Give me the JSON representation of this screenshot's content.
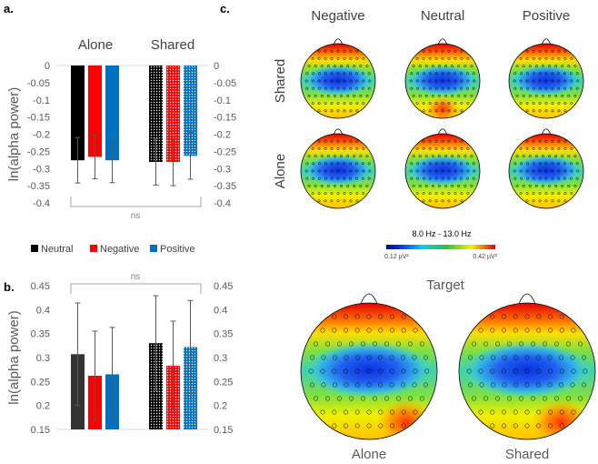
{
  "panel_labels": {
    "a": "a.",
    "b": "b.",
    "c": "c."
  },
  "legend": [
    {
      "label": "Neutral",
      "color": "#000000"
    },
    {
      "label": "Negative",
      "color": "#ff0000"
    },
    {
      "label": "Positive",
      "color": "#0070c0"
    }
  ],
  "chart_data": [
    {
      "type": "bar",
      "panel": "a",
      "title_groups": [
        "Alone",
        "Shared"
      ],
      "categories": [
        "Alone",
        "Shared"
      ],
      "ylabel": "ln(alpha power)",
      "ylim": [
        -0.4,
        0
      ],
      "yticks": [
        "0",
        "-0.05",
        "-0.1",
        "-0.15",
        "-0.2",
        "-0.25",
        "-0.3",
        "-0.35",
        "-0.4"
      ],
      "ytick_values": [
        0,
        -0.05,
        -0.1,
        -0.15,
        -0.2,
        -0.25,
        -0.3,
        -0.35,
        -0.4
      ],
      "series": [
        {
          "name": "Neutral",
          "values": [
            -0.276,
            -0.281
          ],
          "errors": [
            0.066,
            0.067
          ]
        },
        {
          "name": "Negative",
          "values": [
            -0.266,
            -0.281
          ],
          "errors": [
            0.064,
            0.069
          ]
        },
        {
          "name": "Positive",
          "values": [
            -0.276,
            -0.263
          ],
          "errors": [
            0.065,
            0.068
          ]
        }
      ],
      "annotation": "ns"
    },
    {
      "type": "bar",
      "panel": "b",
      "categories": [
        "Alone",
        "Shared"
      ],
      "ylabel": "ln(alpha power)",
      "ylim": [
        0.15,
        0.45
      ],
      "yticks": [
        "0.45",
        "0.4",
        "0.35",
        "0.3",
        "0.25",
        "0.2",
        "0.15"
      ],
      "ytick_values": [
        0.45,
        0.4,
        0.35,
        0.3,
        0.25,
        0.2,
        0.15
      ],
      "series": [
        {
          "name": "Neutral",
          "values": [
            0.307,
            0.33
          ],
          "errors": [
            0.107,
            0.099
          ]
        },
        {
          "name": "Negative",
          "values": [
            0.262,
            0.283
          ],
          "errors": [
            0.093,
            0.093
          ]
        },
        {
          "name": "Positive",
          "values": [
            0.265,
            0.322
          ],
          "errors": [
            0.098,
            0.097
          ]
        }
      ],
      "annotation": "ns"
    }
  ],
  "topomaps": {
    "columns": [
      "Negative",
      "Neutral",
      "Positive"
    ],
    "rows": [
      "Shared",
      "Alone"
    ],
    "colorbar": {
      "title": "8.0 Hz - 13.0 Hz",
      "min_label": "0.12 µV²",
      "max_label": "0.42 µV²"
    },
    "target_title": "Target",
    "target_labels": [
      "Alone",
      "Shared"
    ]
  }
}
